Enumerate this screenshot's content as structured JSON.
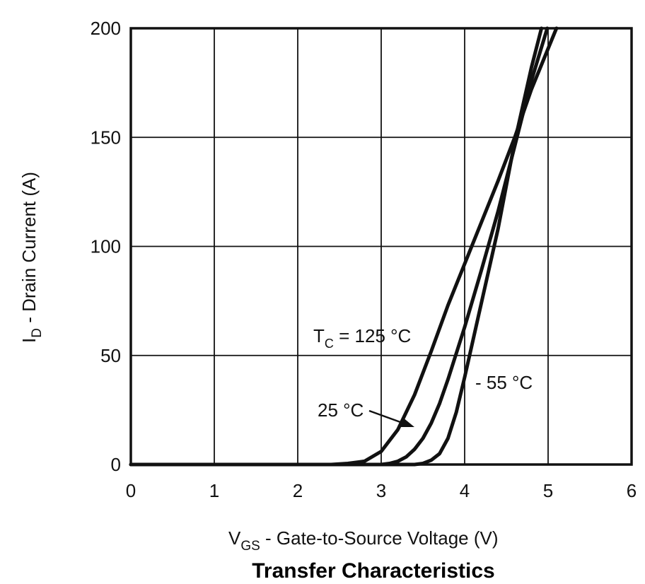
{
  "chart_data": {
    "type": "line",
    "title": "Transfer Characteristics",
    "xlabel": {
      "main": "V",
      "sub": "GS",
      "rest": " - Gate-to-Source Voltage (V)"
    },
    "ylabel": {
      "main": "I",
      "sub": "D",
      "rest": " - Drain Current (A)"
    },
    "xlim": [
      0,
      6
    ],
    "ylim": [
      0,
      200
    ],
    "x_ticks": [
      "0",
      "1",
      "2",
      "3",
      "4",
      "5",
      "6"
    ],
    "y_ticks": [
      "0",
      "50",
      "100",
      "150",
      "200"
    ],
    "grid": true,
    "series": [
      {
        "name": "TC = 125 °C",
        "x": [
          0,
          2.4,
          2.6,
          2.8,
          3.0,
          3.2,
          3.4,
          3.6,
          3.8,
          4.0,
          4.2,
          4.4,
          4.6,
          4.8,
          5.1
        ],
        "y": [
          0,
          0,
          0.5,
          1.5,
          6,
          16,
          32,
          52,
          73,
          92,
          111,
          130,
          150,
          172,
          200
        ]
      },
      {
        "name": "25 °C",
        "x": [
          0,
          3.0,
          3.1,
          3.2,
          3.3,
          3.4,
          3.5,
          3.6,
          3.7,
          3.8,
          3.9,
          4.0,
          4.2,
          4.4,
          4.6,
          4.8,
          4.99
        ],
        "y": [
          0,
          0,
          0.5,
          1.5,
          3.5,
          7,
          12,
          19,
          28,
          39,
          51,
          63,
          89,
          116,
          146,
          176,
          200
        ]
      },
      {
        "name": "- 55 °C",
        "x": [
          0,
          3.4,
          3.5,
          3.6,
          3.7,
          3.8,
          3.9,
          4.0,
          4.1,
          4.2,
          4.3,
          4.4,
          4.6,
          4.8,
          4.92
        ],
        "y": [
          0,
          0,
          0.5,
          2,
          5,
          12,
          24,
          40,
          57,
          74,
          91,
          108,
          148,
          182,
          200
        ]
      }
    ],
    "annotations": [
      {
        "main": "T",
        "sub": "C",
        "rest": " = 125 °C"
      },
      {
        "text": "25 °C"
      },
      {
        "text": "- 55 °C"
      }
    ]
  }
}
